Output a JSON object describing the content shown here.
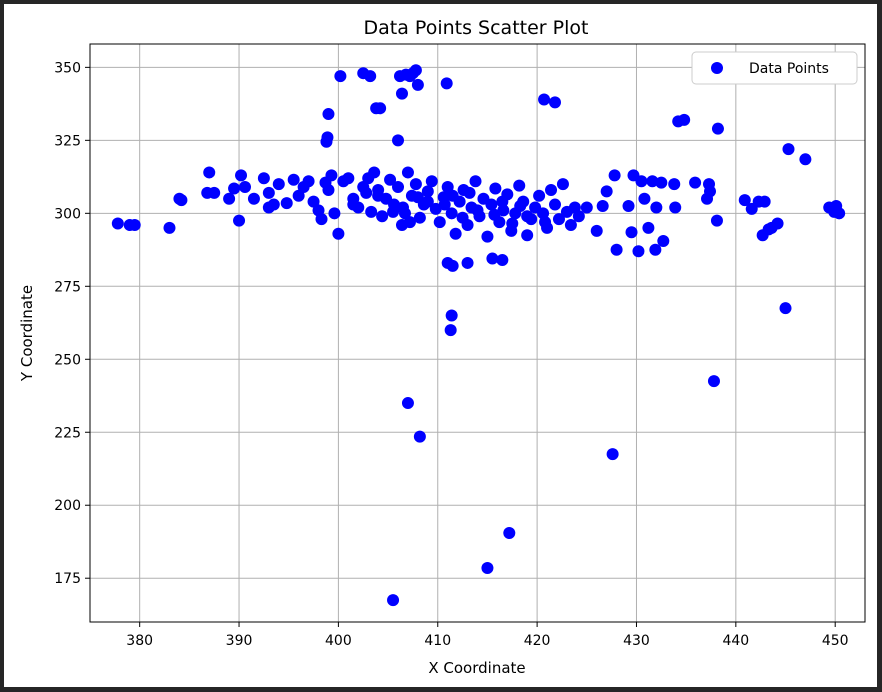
{
  "chart_data": {
    "type": "scatter",
    "title": "Data Points Scatter Plot",
    "xlabel": "X Coordinate",
    "ylabel": "Y Coordinate",
    "xlim": [
      375,
      453
    ],
    "ylim": [
      160,
      358
    ],
    "xticks": [
      380,
      390,
      400,
      410,
      420,
      430,
      440,
      450
    ],
    "yticks": [
      175,
      200,
      225,
      250,
      275,
      300,
      325,
      350
    ],
    "grid": true,
    "legend": {
      "position": "top-right",
      "entries": [
        "Data Points"
      ]
    },
    "series": [
      {
        "name": "Data Points",
        "color": "#0000ff",
        "points": [
          [
            377.8,
            296.5
          ],
          [
            379,
            296
          ],
          [
            379.5,
            296
          ],
          [
            383,
            295
          ],
          [
            384,
            305
          ],
          [
            384.2,
            304.5
          ],
          [
            386.8,
            307
          ],
          [
            387,
            314
          ],
          [
            387.5,
            307
          ],
          [
            389,
            305
          ],
          [
            389.5,
            308.5
          ],
          [
            390,
            297.5
          ],
          [
            390.2,
            313
          ],
          [
            390.6,
            309
          ],
          [
            391.5,
            305
          ],
          [
            392.5,
            312
          ],
          [
            393,
            302
          ],
          [
            393,
            307
          ],
          [
            393.5,
            303
          ],
          [
            394,
            310
          ],
          [
            394.8,
            303.5
          ],
          [
            395.5,
            311.5
          ],
          [
            396,
            306
          ],
          [
            396.5,
            309
          ],
          [
            397,
            311
          ],
          [
            397.5,
            304
          ],
          [
            398,
            301
          ],
          [
            398.3,
            298
          ],
          [
            398.7,
            310.5
          ],
          [
            399,
            308
          ],
          [
            399.3,
            313
          ],
          [
            399.6,
            300
          ],
          [
            400,
            293
          ],
          [
            400.5,
            311
          ],
          [
            401,
            312
          ],
          [
            401.5,
            305
          ],
          [
            402,
            302
          ],
          [
            402.5,
            309
          ],
          [
            403,
            312
          ],
          [
            403.3,
            300.5
          ],
          [
            403.6,
            314
          ],
          [
            404,
            308
          ],
          [
            404.4,
            299
          ],
          [
            404.8,
            305
          ],
          [
            405.2,
            311.5
          ],
          [
            405.6,
            303
          ],
          [
            406,
            309
          ],
          [
            406.4,
            296
          ],
          [
            406.7,
            300
          ],
          [
            407,
            314
          ],
          [
            407.4,
            306
          ],
          [
            407.8,
            310
          ],
          [
            408.2,
            298.5
          ],
          [
            408.6,
            303
          ],
          [
            409,
            307.5
          ],
          [
            409.4,
            311
          ],
          [
            409.8,
            301.5
          ],
          [
            410.2,
            297
          ],
          [
            410.6,
            305.5
          ],
          [
            411,
            309
          ],
          [
            411.4,
            300
          ],
          [
            411.8,
            293
          ],
          [
            412.2,
            304
          ],
          [
            412.6,
            308
          ],
          [
            413,
            296
          ],
          [
            413.4,
            302
          ],
          [
            413.8,
            311
          ],
          [
            414.2,
            299
          ],
          [
            414.6,
            305
          ],
          [
            415,
            292
          ],
          [
            415.4,
            303
          ],
          [
            415.8,
            308.5
          ],
          [
            416.2,
            297
          ],
          [
            416.6,
            301
          ],
          [
            417,
            306.5
          ],
          [
            417.4,
            294
          ],
          [
            417.8,
            300
          ],
          [
            418.2,
            309.5
          ],
          [
            418.6,
            304
          ],
          [
            419,
            292.5
          ],
          [
            419.4,
            298
          ],
          [
            419.8,
            302
          ],
          [
            420.2,
            306
          ],
          [
            420.6,
            300
          ],
          [
            421,
            295
          ],
          [
            421.4,
            308
          ],
          [
            421.8,
            303
          ],
          [
            422.2,
            298
          ],
          [
            422.6,
            310
          ],
          [
            423,
            300.5
          ],
          [
            423.4,
            296
          ],
          [
            423.8,
            302
          ],
          [
            424.2,
            299
          ],
          [
            425,
            302
          ],
          [
            401.5,
            303
          ],
          [
            404,
            306
          ],
          [
            406.5,
            302
          ],
          [
            409,
            304
          ],
          [
            411.5,
            306
          ],
          [
            414,
            301
          ],
          [
            416.5,
            304
          ],
          [
            419,
            299
          ],
          [
            402.8,
            307
          ],
          [
            405.5,
            300.5
          ],
          [
            408,
            305.5
          ],
          [
            410.7,
            303
          ],
          [
            413.2,
            307
          ],
          [
            415.7,
            299.5
          ],
          [
            418.3,
            302.5
          ],
          [
            420.8,
            297
          ],
          [
            407.2,
            297
          ],
          [
            412.5,
            298.5
          ],
          [
            417.5,
            296.5
          ],
          [
            400.2,
            347
          ],
          [
            402.5,
            348
          ],
          [
            403.2,
            347
          ],
          [
            403.8,
            336
          ],
          [
            404.2,
            336
          ],
          [
            399,
            334
          ],
          [
            398.9,
            326
          ],
          [
            398.8,
            324.5
          ],
          [
            406,
            325
          ],
          [
            406.2,
            347
          ],
          [
            406.4,
            341
          ],
          [
            406.8,
            347.5
          ],
          [
            407.2,
            347
          ],
          [
            407.5,
            348
          ],
          [
            407.8,
            349
          ],
          [
            408,
            344
          ],
          [
            410.9,
            344.5
          ],
          [
            420.7,
            339
          ],
          [
            421.8,
            338
          ],
          [
            434.2,
            331.5
          ],
          [
            434.8,
            332
          ],
          [
            438.2,
            329
          ],
          [
            445.3,
            322
          ],
          [
            447,
            318.5
          ],
          [
            411,
            283
          ],
          [
            411.5,
            282
          ],
          [
            413,
            283
          ],
          [
            415.5,
            284.5
          ],
          [
            416.5,
            284
          ],
          [
            411.4,
            265
          ],
          [
            411.3,
            260
          ],
          [
            407,
            235
          ],
          [
            408.2,
            223.5
          ],
          [
            417.2,
            190.5
          ],
          [
            415,
            178.5
          ],
          [
            405.5,
            167.5
          ],
          [
            427.6,
            217.5
          ],
          [
            437.8,
            242.5
          ],
          [
            445,
            267.5
          ],
          [
            426,
            294
          ],
          [
            426.6,
            302.5
          ],
          [
            427,
            307.5
          ],
          [
            427.8,
            313
          ],
          [
            428,
            287.5
          ],
          [
            429.2,
            302.5
          ],
          [
            429.5,
            293.5
          ],
          [
            429.7,
            313
          ],
          [
            430.2,
            287
          ],
          [
            430.5,
            311
          ],
          [
            430.8,
            305
          ],
          [
            431.2,
            295
          ],
          [
            431.6,
            311
          ],
          [
            431.9,
            287.5
          ],
          [
            432,
            302
          ],
          [
            432.5,
            310.5
          ],
          [
            432.7,
            290.5
          ],
          [
            433.8,
            310
          ],
          [
            433.9,
            302
          ],
          [
            435.9,
            310.5
          ],
          [
            437.1,
            305
          ],
          [
            437.3,
            310
          ],
          [
            437.4,
            307.5
          ],
          [
            438.1,
            297.5
          ],
          [
            440.9,
            304.5
          ],
          [
            441.6,
            301.5
          ],
          [
            442.3,
            304
          ],
          [
            442.7,
            292.5
          ],
          [
            442.9,
            304
          ],
          [
            443.3,
            294.5
          ],
          [
            443.6,
            295
          ],
          [
            444.2,
            296.5
          ],
          [
            449.4,
            302
          ],
          [
            449.9,
            300.5
          ],
          [
            450.1,
            302.5
          ],
          [
            450.4,
            300
          ]
        ]
      }
    ]
  }
}
